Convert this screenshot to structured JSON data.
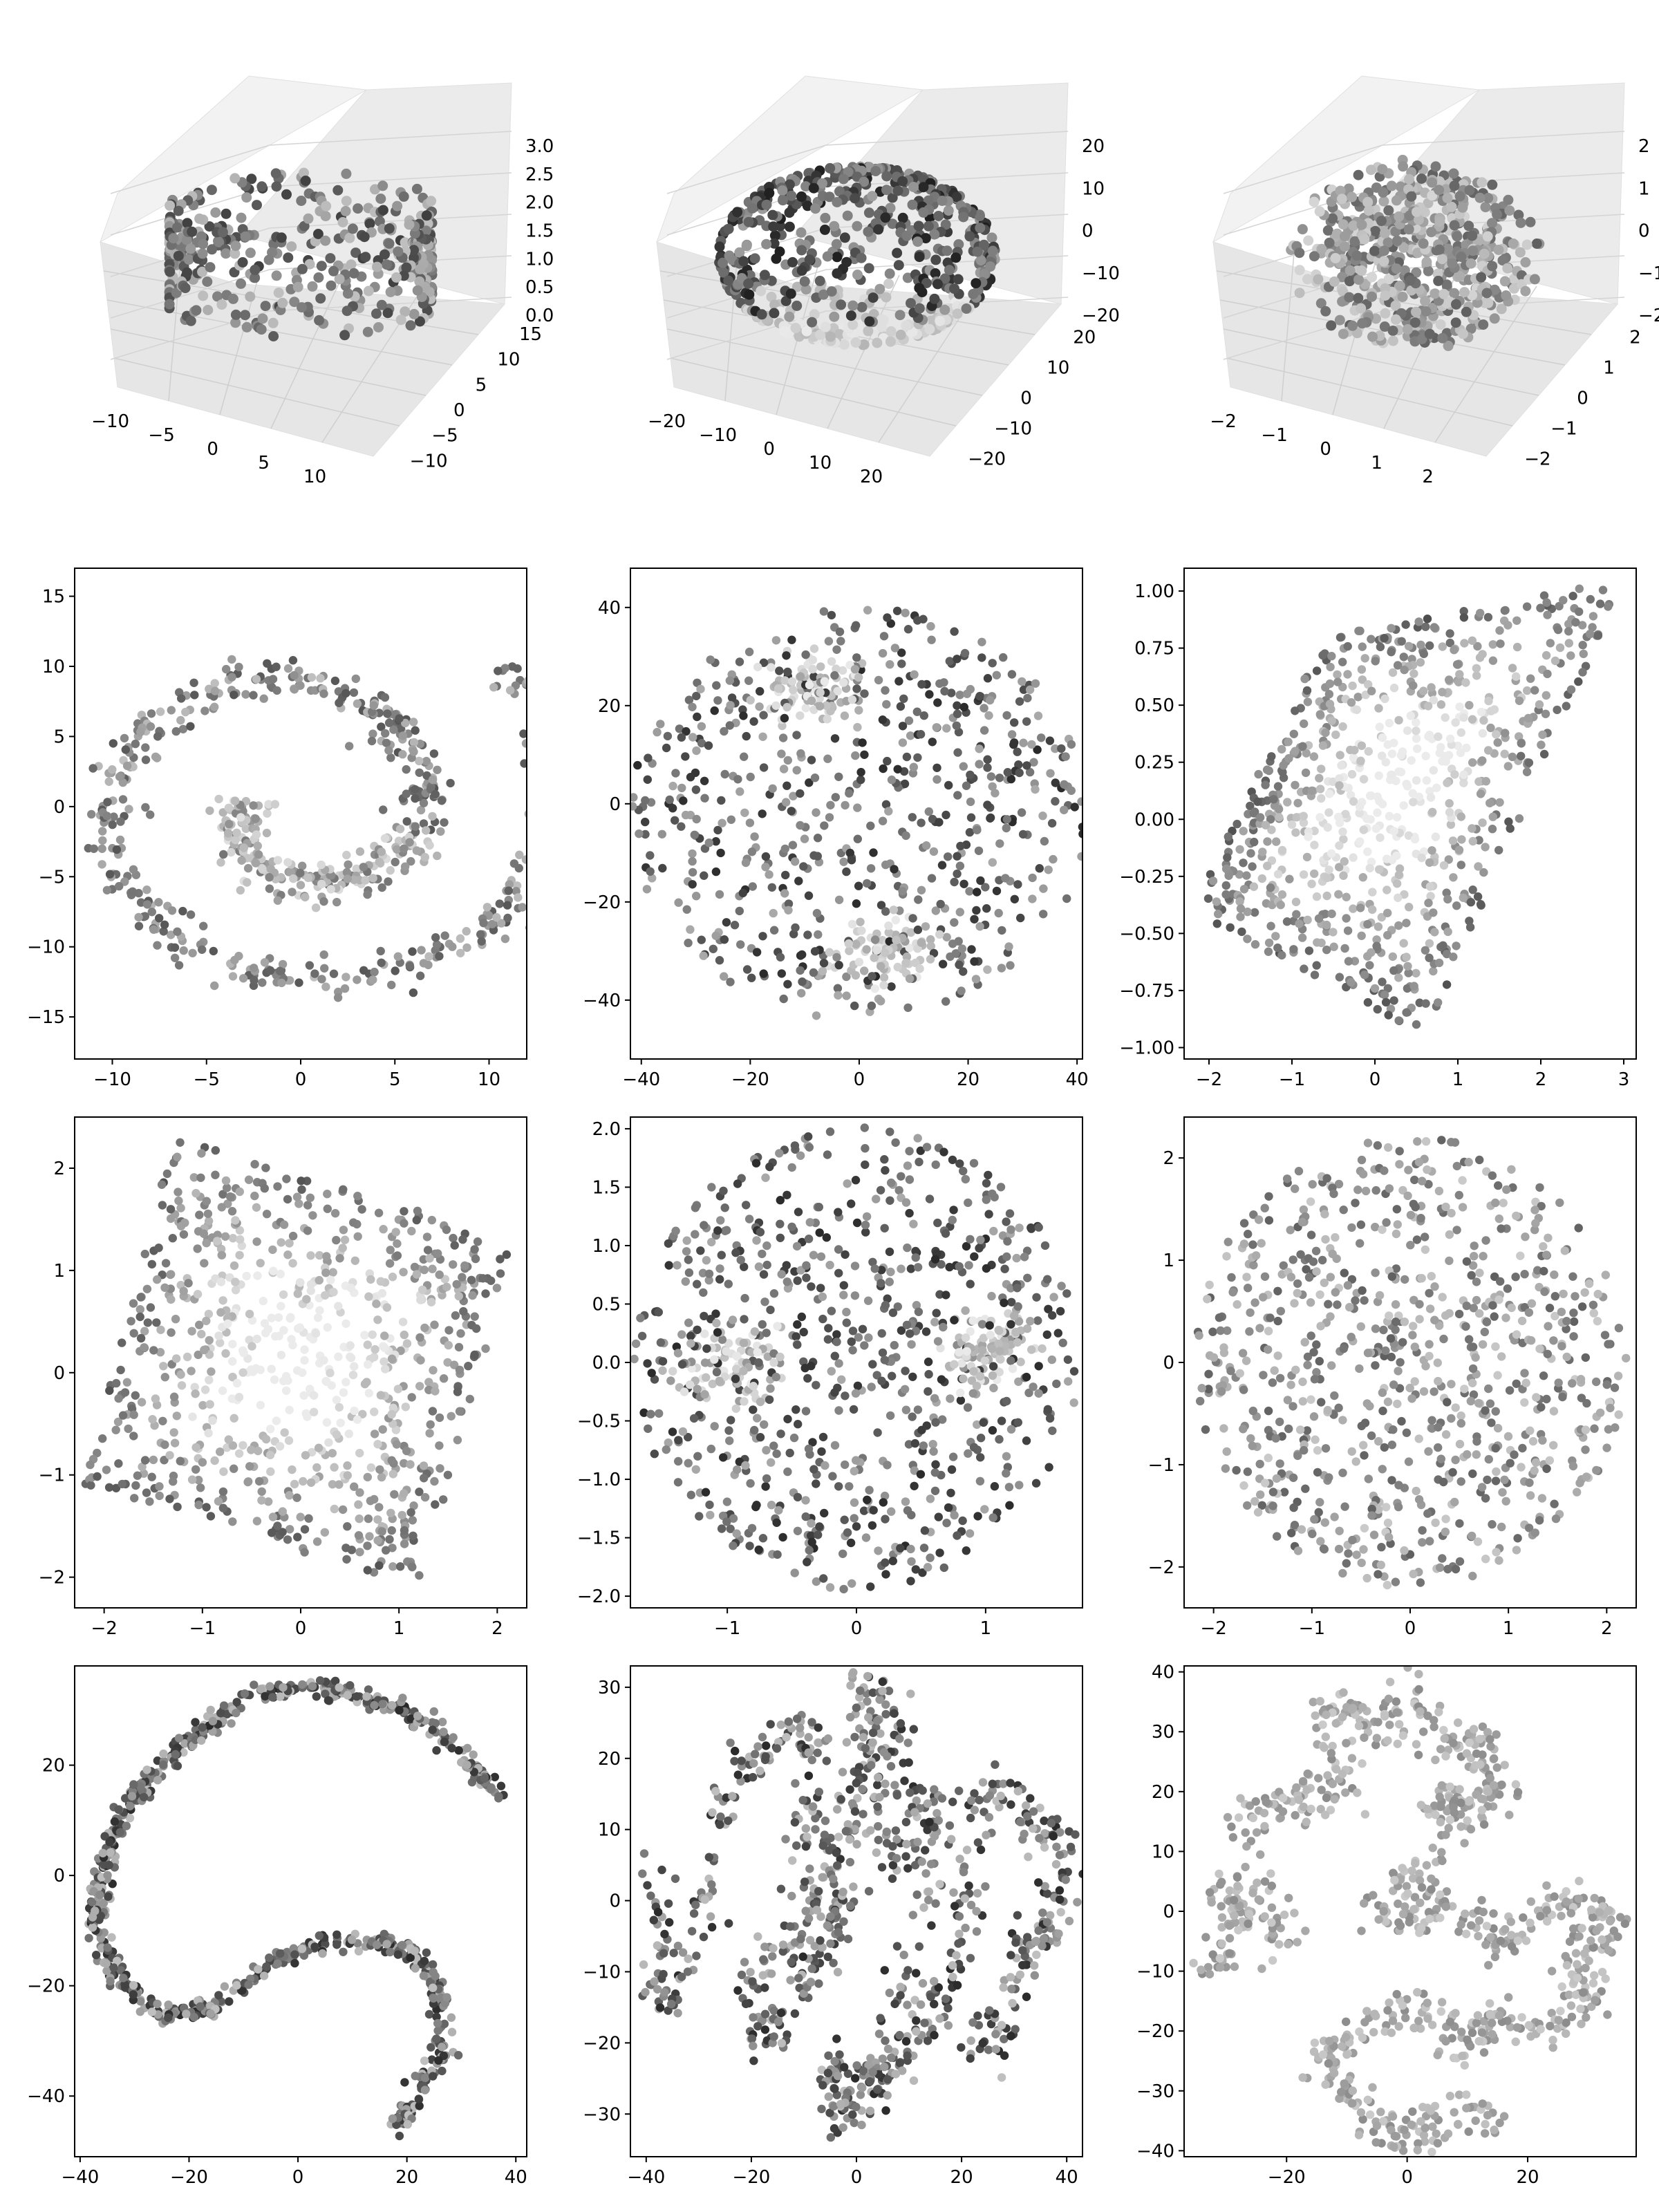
{
  "chart_data": [
    {
      "type": "scatter3d",
      "row": 0,
      "col": 0,
      "shape": "cylinder",
      "xticks": [
        "−10",
        "−5",
        "0",
        "5",
        "10"
      ],
      "yticks": [
        "−10",
        "−5",
        "0",
        "5",
        "10",
        "15"
      ],
      "zticks": [
        "0.0",
        "0.5",
        "1.0",
        "1.5",
        "2.0",
        "2.5",
        "3.0"
      ],
      "xlim": [
        -12,
        13
      ],
      "ylim": [
        -12,
        16
      ],
      "zlim": [
        -0.2,
        3.2
      ],
      "n_points": 420,
      "seed": 11,
      "x_range": [
        -10,
        12
      ],
      "y_range": [
        -10,
        14
      ],
      "z_range": [
        0,
        3
      ]
    },
    {
      "type": "scatter3d",
      "row": 0,
      "col": 1,
      "shape": "sphere-surface",
      "xticks": [
        "−20",
        "−10",
        "0",
        "10",
        "20"
      ],
      "yticks": [
        "−20",
        "−10",
        "0",
        "10",
        "20"
      ],
      "zticks": [
        "−20",
        "−10",
        "0",
        "10",
        "20"
      ],
      "xlim": [
        -22,
        22
      ],
      "ylim": [
        -22,
        22
      ],
      "zlim": [
        -22,
        22
      ],
      "n_points": 600,
      "seed": 23,
      "radius": 20
    },
    {
      "type": "scatter3d",
      "row": 0,
      "col": 2,
      "shape": "ball",
      "xticks": [
        "−2",
        "−1",
        "0",
        "1",
        "2"
      ],
      "yticks": [
        "−2",
        "−1",
        "0",
        "1",
        "2"
      ],
      "zticks": [
        "−2",
        "−1",
        "0",
        "1",
        "2"
      ],
      "xlim": [
        -2.2,
        2.2
      ],
      "ylim": [
        -2.2,
        2.2
      ],
      "zlim": [
        -2.2,
        2.2
      ],
      "n_points": 600,
      "seed": 37,
      "radius": 2
    },
    {
      "type": "scatter",
      "row": 1,
      "col": 0,
      "shape": "spiral",
      "xticks": [
        -10,
        -5,
        0,
        5,
        10
      ],
      "yticks": [
        -15,
        -10,
        -5,
        0,
        5,
        10,
        15
      ],
      "xlim": [
        -12,
        12
      ],
      "ylim": [
        -18,
        17
      ],
      "n_points": 700,
      "seed": 101,
      "t_range": [
        3.0,
        13.3
      ],
      "width": 1.3
    },
    {
      "type": "scatter",
      "row": 1,
      "col": 1,
      "shape": "disk-two-clusters",
      "xticks": [
        -40,
        -20,
        0,
        20,
        40
      ],
      "yticks": [
        -40,
        -20,
        0,
        20,
        40
      ],
      "xlim": [
        -42,
        41
      ],
      "ylim": [
        -52,
        48
      ],
      "n_points": 800,
      "seed": 202,
      "center": [
        0,
        -2
      ],
      "radius": 42,
      "clusters": [
        [
          -8,
          24
        ],
        [
          5,
          -30
        ]
      ]
    },
    {
      "type": "scatter",
      "row": 1,
      "col": 2,
      "shape": "parallelogram",
      "xticks": [
        -2,
        -1,
        0,
        1,
        2,
        3
      ],
      "yticks": [
        "−1.00",
        "−0.75",
        "−0.50",
        "−0.25",
        "0.00",
        "0.25",
        "0.50",
        "0.75",
        "1.00"
      ],
      "ytick_values": [
        -1.0,
        -0.75,
        -0.5,
        -0.25,
        0.0,
        0.25,
        0.5,
        0.75,
        1.0
      ],
      "xlim": [
        -2.3,
        3.15
      ],
      "ylim": [
        -1.05,
        1.1
      ],
      "n_points": 800,
      "seed": 303,
      "corners": [
        [
          -2.2,
          -0.4
        ],
        [
          -0.6,
          0.8
        ],
        [
          3.0,
          1.05
        ],
        [
          0.6,
          -0.95
        ]
      ]
    },
    {
      "type": "scatter",
      "row": 2,
      "col": 0,
      "shape": "tilted-square",
      "xticks": [
        -2,
        -1,
        0,
        1,
        2
      ],
      "yticks": [
        -2,
        -1,
        0,
        1,
        2
      ],
      "xlim": [
        -2.3,
        2.3
      ],
      "ylim": [
        -2.3,
        2.5
      ],
      "n_points": 800,
      "seed": 404,
      "corners": [
        [
          -1.3,
          2.3
        ],
        [
          2.2,
          1.3
        ],
        [
          1.2,
          -2.1
        ],
        [
          -2.2,
          -1.1
        ]
      ]
    },
    {
      "type": "scatter",
      "row": 2,
      "col": 1,
      "shape": "disk",
      "xticks": [
        -1,
        0,
        1
      ],
      "yticks": [
        "−2.0",
        "−1.5",
        "−1.0",
        "−0.5",
        "0.0",
        "0.5",
        "1.0",
        "1.5",
        "2.0"
      ],
      "ytick_values": [
        -2.0,
        -1.5,
        -1.0,
        -0.5,
        0.0,
        0.5,
        1.0,
        1.5,
        2.0
      ],
      "xlim": [
        -1.75,
        1.75
      ],
      "ylim": [
        -2.1,
        2.1
      ],
      "n_points": 900,
      "seed": 505,
      "center": [
        0,
        0.03
      ],
      "rx": 1.72,
      "ry": 1.98,
      "clusters": [
        [
          -1.0,
          0.0
        ],
        [
          1.0,
          0.1
        ]
      ]
    },
    {
      "type": "scatter",
      "row": 2,
      "col": 2,
      "shape": "disk",
      "xticks": [
        -2,
        -1,
        0,
        1,
        2
      ],
      "yticks": [
        -2,
        -1,
        0,
        1,
        2
      ],
      "xlim": [
        -2.3,
        2.3
      ],
      "ylim": [
        -2.4,
        2.4
      ],
      "n_points": 800,
      "seed": 606,
      "center": [
        0,
        0
      ],
      "rx": 2.2,
      "ry": 2.2,
      "clusters": []
    },
    {
      "type": "scatter",
      "row": 3,
      "col": 0,
      "shape": "s-curve",
      "xticks": [
        -40,
        -20,
        0,
        20,
        40
      ],
      "yticks": [
        -40,
        -20,
        0,
        20
      ],
      "xlim": [
        -41,
        42
      ],
      "ylim": [
        -51,
        38
      ],
      "n_points": 800,
      "seed": 707,
      "path": [
        [
          37,
          15
        ],
        [
          30,
          22
        ],
        [
          20,
          30
        ],
        [
          8,
          33
        ],
        [
          5,
          34
        ],
        [
          -8,
          33
        ],
        [
          -18,
          26
        ],
        [
          -25,
          20
        ],
        [
          -32,
          12
        ],
        [
          -36,
          0
        ],
        [
          -37,
          -8
        ],
        [
          -34,
          -18
        ],
        [
          -25,
          -25
        ],
        [
          -15,
          -24
        ],
        [
          -5,
          -16
        ],
        [
          5,
          -12
        ],
        [
          15,
          -12
        ],
        [
          22,
          -14
        ],
        [
          26,
          -22
        ],
        [
          27,
          -32
        ],
        [
          20,
          -42
        ],
        [
          19,
          -46
        ]
      ]
    },
    {
      "type": "scatter",
      "row": 3,
      "col": 1,
      "shape": "clusters",
      "xticks": [
        -40,
        -20,
        0,
        20,
        40
      ],
      "yticks": [
        -30,
        -20,
        -10,
        0,
        10,
        20,
        30
      ],
      "xlim": [
        -43,
        43
      ],
      "ylim": [
        -36,
        33
      ],
      "n_points": 900,
      "seed": 808,
      "path": [
        [
          -38,
          5
        ],
        [
          -38,
          -5
        ],
        [
          -36,
          -15
        ],
        [
          -30,
          -5
        ],
        [
          -28,
          10
        ],
        [
          -22,
          18
        ],
        [
          -15,
          22
        ],
        [
          -10,
          24
        ],
        [
          -8,
          20
        ],
        [
          -10,
          10
        ],
        [
          -8,
          0
        ],
        [
          -12,
          -5
        ],
        [
          -20,
          -10
        ],
        [
          -18,
          -20
        ],
        [
          -10,
          -12
        ],
        [
          -5,
          -5
        ],
        [
          -2,
          0
        ],
        [
          -5,
          9
        ],
        [
          0,
          12
        ],
        [
          2,
          20
        ],
        [
          0,
          28
        ],
        [
          5,
          30
        ],
        [
          8,
          22
        ],
        [
          3,
          10
        ],
        [
          10,
          5
        ],
        [
          12,
          15
        ],
        [
          15,
          10
        ],
        [
          12,
          -5
        ],
        [
          8,
          -15
        ],
        [
          3,
          -25
        ],
        [
          -2,
          -28
        ],
        [
          -5,
          -22
        ],
        [
          -3,
          -32
        ],
        [
          5,
          -25
        ],
        [
          12,
          -18
        ],
        [
          18,
          -12
        ],
        [
          22,
          -5
        ],
        [
          20,
          5
        ],
        [
          24,
          15
        ],
        [
          30,
          14
        ],
        [
          35,
          10
        ],
        [
          40,
          8
        ],
        [
          38,
          -2
        ],
        [
          34,
          -5
        ],
        [
          30,
          -10
        ],
        [
          28,
          -20
        ],
        [
          22,
          -18
        ]
      ]
    },
    {
      "type": "scatter",
      "row": 3,
      "col": 2,
      "shape": "clusters",
      "xticks": [
        -20,
        0,
        20
      ],
      "yticks": [
        -40,
        -30,
        -20,
        -10,
        0,
        10,
        20,
        30,
        40
      ],
      "xlim": [
        -37,
        38
      ],
      "ylim": [
        -41,
        41
      ],
      "n_points": 900,
      "seed": 909,
      "path": [
        [
          -33,
          -10
        ],
        [
          -30,
          -5
        ],
        [
          -28,
          0
        ],
        [
          -32,
          5
        ],
        [
          -25,
          -2
        ],
        [
          -20,
          -5
        ],
        [
          -28,
          15
        ],
        [
          -20,
          18
        ],
        [
          -15,
          20
        ],
        [
          -10,
          22
        ],
        [
          -15,
          32
        ],
        [
          -10,
          35
        ],
        [
          -5,
          30
        ],
        [
          0,
          35
        ],
        [
          5,
          30
        ],
        [
          10,
          28
        ],
        [
          15,
          22
        ],
        [
          10,
          15
        ],
        [
          5,
          18
        ],
        [
          15,
          20
        ],
        [
          12,
          30
        ],
        [
          5,
          10
        ],
        [
          0,
          5
        ],
        [
          -5,
          0
        ],
        [
          0,
          -2
        ],
        [
          5,
          2
        ],
        [
          10,
          -2
        ],
        [
          15,
          -5
        ],
        [
          20,
          -2
        ],
        [
          25,
          2
        ],
        [
          30,
          0
        ],
        [
          35,
          -2
        ],
        [
          28,
          -8
        ],
        [
          30,
          -15
        ],
        [
          25,
          -18
        ],
        [
          20,
          -20
        ],
        [
          15,
          -18
        ],
        [
          10,
          -22
        ],
        [
          5,
          -18
        ],
        [
          0,
          -15
        ],
        [
          -5,
          -20
        ],
        [
          -10,
          -22
        ],
        [
          -15,
          -25
        ],
        [
          -10,
          -30
        ],
        [
          -5,
          -35
        ],
        [
          0,
          -38
        ],
        [
          5,
          -35
        ],
        [
          10,
          -32
        ],
        [
          15,
          -35
        ]
      ]
    }
  ]
}
